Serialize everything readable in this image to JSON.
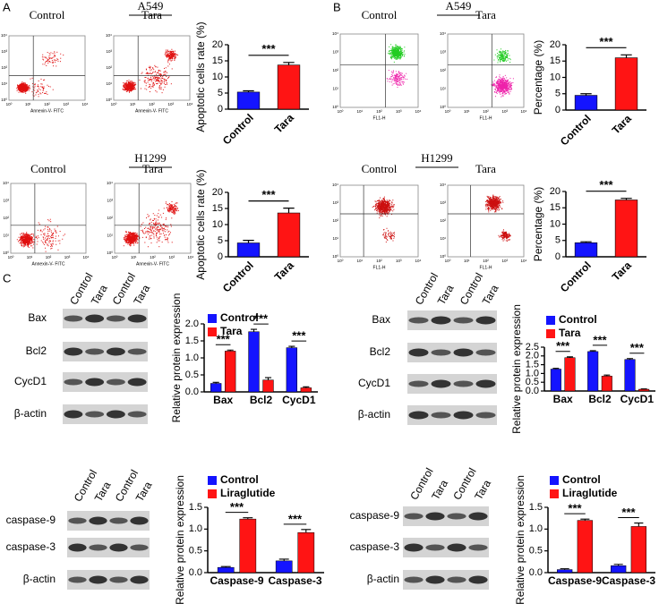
{
  "figure": {
    "panel_labels": [
      "A",
      "B",
      "C"
    ],
    "flow": [
      {
        "cell_line": "A549",
        "conditions": [
          "Control",
          "Tara"
        ],
        "xlabel": "Annexin-V- FITC",
        "ticks": [
          "10⁰",
          "10¹",
          "10²",
          "10³",
          "10⁴"
        ]
      },
      {
        "cell_line": "H1299",
        "conditions": [
          "Control",
          "Tara"
        ],
        "xlabel": "Annexin-V- FITC",
        "ticks": [
          "10⁰",
          "10¹",
          "10²",
          "10³",
          "10⁴"
        ]
      },
      {
        "cell_line": "A549",
        "conditions": [
          "Control",
          "Tara"
        ],
        "xlabel": "FL1-H",
        "ticks": [
          "10⁰",
          "10¹",
          "10²",
          "10³",
          "10⁴"
        ]
      },
      {
        "cell_line": "H1299",
        "conditions": [
          "Control",
          "Tara"
        ],
        "xlabel": "FL1-H",
        "ticks": [
          "10⁰",
          "10¹",
          "10²",
          "10³",
          "10⁴"
        ]
      }
    ],
    "blots": [
      {
        "lanes": [
          "Control",
          "Tara",
          "Control",
          "Tara"
        ],
        "rows": [
          "Bax",
          "Bcl2",
          "CycD1",
          "β-actin"
        ]
      },
      {
        "lanes": [
          "Control",
          "Tara",
          "Control",
          "Tara"
        ],
        "rows": [
          "Bax",
          "Bcl2",
          "CycD1",
          "β-actin"
        ]
      },
      {
        "lanes": [
          "Control",
          "Tara",
          "Control",
          "Tara"
        ],
        "rows": [
          "caspase-9",
          "caspase-3",
          "β-actin"
        ]
      },
      {
        "lanes": [
          "Control",
          "Tara",
          "Control",
          "Tara"
        ],
        "rows": [
          "caspase-9",
          "caspase-3",
          "β-actin"
        ]
      }
    ]
  },
  "chart_data": [
    {
      "type": "bar",
      "ylabel": "Apoptotic cells rate (%)",
      "categories": [
        "Control",
        "Tara"
      ],
      "values": [
        5.3,
        13.7
      ],
      "errors": [
        0.4,
        0.8
      ],
      "colors": [
        "#1414ff",
        "#ff1414"
      ],
      "ylim": [
        0,
        20
      ],
      "yticks": [
        0,
        5,
        10,
        15,
        20
      ],
      "annotations": [
        "***"
      ]
    },
    {
      "type": "bar",
      "ylabel": "Apoptotic cells rate (%)",
      "categories": [
        "Control",
        "Tara"
      ],
      "values": [
        4.3,
        13.6
      ],
      "errors": [
        0.8,
        1.5
      ],
      "colors": [
        "#1414ff",
        "#ff1414"
      ],
      "ylim": [
        0,
        20
      ],
      "yticks": [
        0,
        5,
        10,
        15,
        20
      ],
      "annotations": [
        "***"
      ]
    },
    {
      "type": "bar",
      "ylabel": "Percentage (%)",
      "categories": [
        "Control",
        "Tara"
      ],
      "values": [
        4.5,
        16.0
      ],
      "errors": [
        0.5,
        0.9
      ],
      "colors": [
        "#1414ff",
        "#ff1414"
      ],
      "ylim": [
        0,
        20
      ],
      "yticks": [
        0,
        5,
        10,
        15,
        20
      ],
      "annotations": [
        "***"
      ]
    },
    {
      "type": "bar",
      "ylabel": "Percentage (%)",
      "categories": [
        "Control",
        "Tara"
      ],
      "values": [
        4.3,
        17.4
      ],
      "errors": [
        0.3,
        0.5
      ],
      "colors": [
        "#1414ff",
        "#ff1414"
      ],
      "ylim": [
        0,
        20
      ],
      "yticks": [
        0,
        5,
        10,
        15,
        20
      ],
      "annotations": [
        "***"
      ]
    },
    {
      "type": "grouped_bar",
      "ylabel": "Relative protein expression",
      "categories": [
        "Bax",
        "Bcl2",
        "CycD1"
      ],
      "series": [
        {
          "name": "Control",
          "color": "#1414ff",
          "values": [
            0.25,
            1.77,
            1.3
          ],
          "errors": [
            0.03,
            0.07,
            0.04
          ]
        },
        {
          "name": "Tara",
          "color": "#ff1414",
          "values": [
            1.2,
            0.35,
            0.12
          ],
          "errors": [
            0.03,
            0.07,
            0.03
          ]
        }
      ],
      "ylim": [
        0,
        2
      ],
      "yticks": [
        {
          "value": 0,
          "label": "0.0"
        },
        0.5,
        {
          "value": 1,
          "label": "1.0"
        },
        1.5,
        {
          "value": 2,
          "label": "2.0"
        }
      ],
      "annotations": [
        "***",
        "***",
        "***"
      ]
    },
    {
      "type": "grouped_bar",
      "ylabel": "Relative protein expression",
      "categories": [
        "Bax",
        "Bcl2",
        "CycD1"
      ],
      "series": [
        {
          "name": "Control",
          "color": "#1414ff",
          "values": [
            1.25,
            2.25,
            1.8
          ],
          "errors": [
            0.04,
            0.05,
            0.05
          ]
        },
        {
          "name": "Tara",
          "color": "#ff1414",
          "values": [
            1.9,
            0.85,
            0.1
          ],
          "errors": [
            0.05,
            0.06,
            0.02
          ]
        }
      ],
      "ylim": [
        0,
        2.5
      ],
      "yticks": [
        {
          "value": 0,
          "label": "0.0"
        },
        0.5,
        {
          "value": 1,
          "label": "1.0"
        },
        1.5,
        {
          "value": 2,
          "label": "2.0"
        },
        2.5
      ],
      "annotations": [
        "***",
        "***",
        "***"
      ]
    },
    {
      "type": "grouped_bar",
      "ylabel": "Relative protein expression",
      "categories": [
        "Caspase-9",
        "Caspase-3"
      ],
      "series": [
        {
          "name": "Control",
          "color": "#1414ff",
          "values": [
            0.12,
            0.27
          ],
          "errors": [
            0.02,
            0.04
          ]
        },
        {
          "name": "Liraglutide",
          "color": "#ff1414",
          "values": [
            1.23,
            0.92
          ],
          "errors": [
            0.03,
            0.07
          ]
        }
      ],
      "ylim": [
        0,
        1.5
      ],
      "yticks": [
        {
          "value": 0,
          "label": "0.0"
        },
        0.5,
        {
          "value": 1,
          "label": "1.0"
        },
        1.5
      ],
      "annotations": [
        "***",
        "***"
      ]
    },
    {
      "type": "grouped_bar",
      "ylabel": "Relative protein expression",
      "categories": [
        "Caspase-9",
        "Caspase-3"
      ],
      "series": [
        {
          "name": "Control",
          "color": "#1414ff",
          "values": [
            0.07,
            0.16
          ],
          "errors": [
            0.02,
            0.03
          ]
        },
        {
          "name": "Liraglutide",
          "color": "#ff1414",
          "values": [
            1.2,
            1.06
          ],
          "errors": [
            0.03,
            0.08
          ]
        }
      ],
      "ylim": [
        0,
        1.5
      ],
      "yticks": [
        {
          "value": 0,
          "label": "0.0"
        },
        0.5,
        {
          "value": 1,
          "label": "1.0"
        },
        1.5
      ],
      "annotations": [
        "***",
        "***"
      ]
    }
  ]
}
